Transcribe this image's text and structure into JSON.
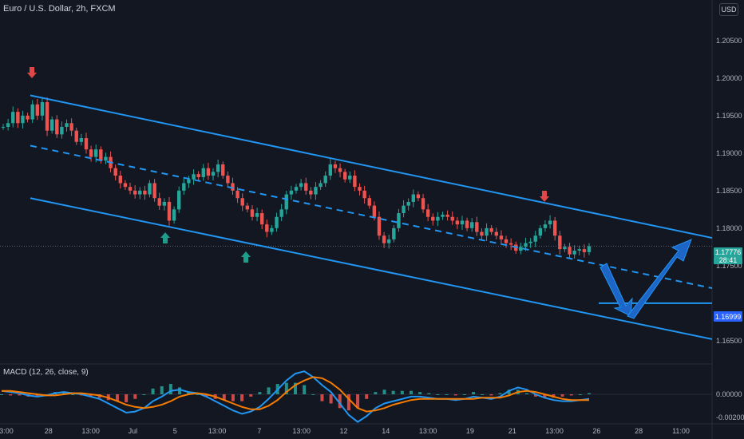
{
  "header": {
    "title": "Euro / U.S. Dollar, 2h, FXCM",
    "currency_button": "USD"
  },
  "price_tags": {
    "current_price": "1.17776",
    "countdown": "28:41",
    "target_price": "1.16999"
  },
  "macd": {
    "title": "MACD (12, 26, close, 9)"
  },
  "colors": {
    "background": "#131722",
    "up": "#26a69a",
    "down": "#ef5350",
    "channel": "#2196f3",
    "macd_line": "#2196f3",
    "signal_line": "#f57c00"
  },
  "chart_data": [
    {
      "type": "line",
      "title": "Euro / U.S. Dollar, 2h, FXCM",
      "xlabel": "",
      "ylabel": "",
      "ylim": [
        1.162,
        1.2085
      ],
      "x_tick_labels": [
        "3:00",
        "28",
        "13:00",
        "Jul",
        "5",
        "13:00",
        "7",
        "13:00",
        "12",
        "14",
        "13:00",
        "19",
        "21",
        "13:00",
        "26",
        "28",
        "11:00"
      ],
      "y_tick_labels": [
        "1.20500",
        "1.20000",
        "1.19500",
        "1.19000",
        "1.18500",
        "1.18000",
        "1.17500",
        "1.16500"
      ],
      "series": [
        {
          "values": [
            1.1935,
            1.194,
            1.1955,
            1.194,
            1.195,
            1.1945,
            1.1965,
            1.195,
            1.1968,
            1.193,
            1.1945,
            1.1925,
            1.1935,
            1.194,
            1.193,
            1.1915,
            1.192,
            1.1905,
            1.1895,
            1.1905,
            1.189,
            1.1895,
            1.188,
            1.187,
            1.186,
            1.1855,
            1.185,
            1.1845,
            1.185,
            1.1845,
            1.186,
            1.184,
            1.183,
            1.1835,
            1.181,
            1.1825,
            1.185,
            1.186,
            1.1865,
            1.1872,
            1.1868,
            1.188,
            1.187,
            1.1875,
            1.1885,
            1.187,
            1.186,
            1.185,
            1.184,
            1.183,
            1.1825,
            1.1815,
            1.182,
            1.1805,
            1.1795,
            1.18,
            1.1815,
            1.1825,
            1.1845,
            1.185,
            1.1855,
            1.186,
            1.185,
            1.1845,
            1.1855,
            1.186,
            1.187,
            1.1885,
            1.188,
            1.1875,
            1.1865,
            1.187,
            1.1855,
            1.185,
            1.184,
            1.183,
            1.1815,
            1.179,
            1.178,
            1.1785,
            1.18,
            1.182,
            1.183,
            1.1835,
            1.1845,
            1.184,
            1.1825,
            1.1815,
            1.181,
            1.1815,
            1.1818,
            1.1815,
            1.181,
            1.1805,
            1.181,
            1.18,
            1.1808,
            1.1795,
            1.179,
            1.18,
            1.1795,
            1.179,
            1.1785,
            1.178,
            1.1778,
            1.177,
            1.1775,
            1.178,
            1.1782,
            1.179,
            1.18,
            1.1805,
            1.181,
            1.179,
            1.1772,
            1.1775,
            1.1765,
            1.177,
            1.1772,
            1.1768,
            1.1776
          ]
        },
        {
          "name": "channel upper",
          "x": [
            0,
            1
          ],
          "values": [
            1.1977,
            1.1787
          ]
        },
        {
          "name": "channel mid",
          "x": [
            0,
            1
          ],
          "values": [
            1.191,
            1.172
          ]
        },
        {
          "name": "channel lower",
          "x": [
            0,
            1
          ],
          "values": [
            1.184,
            1.1652
          ]
        },
        {
          "name": "target level",
          "values": [
            1.16999
          ]
        }
      ],
      "annotations": [
        "down arrow at top",
        "up arrow at bottom",
        "up arrow at bottom",
        "down arrow at top",
        "projected path down to 1.16999 then up to upper channel"
      ]
    },
    {
      "type": "line",
      "title": "MACD (12, 26, close, 9)",
      "ylim": [
        -0.0025,
        0.0025
      ],
      "y_tick_labels": [
        "0.00000",
        "-0.00200"
      ],
      "series": [
        {
          "name": "MACD",
          "values": [
            0.0003,
            0.0002,
            0.0001,
            -0.0001,
            -0.0002,
            -0.0001,
            0.0001,
            0.0002,
            0.0001,
            0.0,
            -0.0002,
            -0.0004,
            -0.0008,
            -0.0012,
            -0.0016,
            -0.0015,
            -0.0012,
            -0.0006,
            -0.0002,
            0.0003,
            0.0004,
            0.0002,
            0.0001,
            -0.0002,
            -0.0006,
            -0.001,
            -0.0014,
            -0.0017,
            -0.0015,
            -0.0011,
            -0.0004,
            0.0004,
            0.0012,
            0.0018,
            0.002,
            0.0015,
            0.0008,
            0.0002,
            -0.0008,
            -0.0018,
            -0.0024,
            -0.0019,
            -0.0012,
            -0.0008,
            -0.0006,
            -0.0004,
            -0.0002,
            -0.0002,
            -0.0003,
            -0.0004,
            -0.0004,
            -0.0005,
            -0.0004,
            -0.0002,
            -0.0003,
            -0.0004,
            -0.0002,
            0.0003,
            0.0006,
            0.0004,
            0.0,
            -0.0003,
            -0.0005,
            -0.0006,
            -0.0006,
            -0.0005,
            -0.0004
          ]
        },
        {
          "name": "Signal",
          "values": [
            0.0003,
            0.0003,
            0.0002,
            0.0001,
            0.0,
            -0.0001,
            -0.0001,
            0.0,
            0.0001,
            0.0001,
            0.0,
            -0.0001,
            -0.0003,
            -0.0006,
            -0.0009,
            -0.0011,
            -0.0012,
            -0.0011,
            -0.0009,
            -0.0006,
            -0.0002,
            0.0,
            0.0001,
            0.0,
            -0.0002,
            -0.0005,
            -0.0008,
            -0.0011,
            -0.0013,
            -0.0013,
            -0.001,
            -0.0005,
            0.0002,
            0.0008,
            0.0012,
            0.0015,
            0.0014,
            0.001,
            0.0004,
            -0.0004,
            -0.0012,
            -0.0015,
            -0.0014,
            -0.0012,
            -0.0009,
            -0.0007,
            -0.0005,
            -0.0004,
            -0.0004,
            -0.0004,
            -0.0004,
            -0.0004,
            -0.0004,
            -0.0004,
            -0.0003,
            -0.0003,
            -0.0003,
            -0.0001,
            0.0002,
            0.0003,
            0.0002,
            0.0,
            -0.0002,
            -0.0004,
            -0.0005,
            -0.0005,
            -0.0005
          ]
        }
      ]
    }
  ]
}
